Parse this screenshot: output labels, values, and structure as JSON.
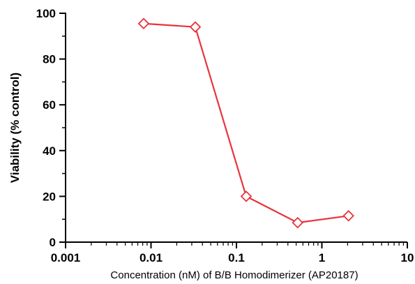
{
  "chart_data": {
    "type": "line",
    "title": "",
    "xlabel": "Concentration (nM) of B/B Homodimerizer (AP20187)",
    "ylabel": "Viability (% control)",
    "x_scale": "log",
    "xlim": [
      0.001,
      10
    ],
    "ylim": [
      0,
      100
    ],
    "x_ticks": [
      0.001,
      0.01,
      0.1,
      1,
      10
    ],
    "x_tick_labels": [
      "0.001",
      "0.01",
      "0.1",
      "1",
      "10"
    ],
    "y_ticks": [
      0,
      20,
      40,
      60,
      80,
      100
    ],
    "y_tick_labels": [
      "0",
      "20",
      "40",
      "60",
      "80",
      "100"
    ],
    "grid": false,
    "series": [
      {
        "color": "#e8343c",
        "marker": "diamond-open",
        "x": [
          0.0082,
          0.033,
          0.13,
          0.52,
          2.05
        ],
        "y": [
          95.5,
          94,
          20,
          8.5,
          11.5
        ]
      }
    ]
  }
}
